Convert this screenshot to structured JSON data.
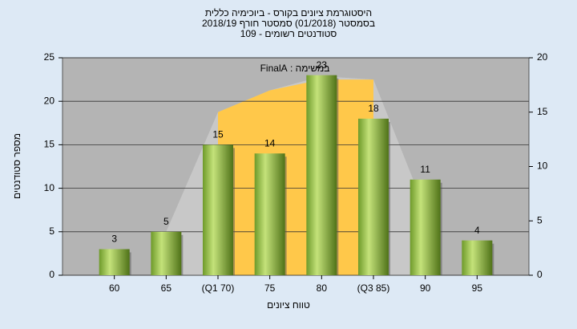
{
  "chart_data": {
    "type": "bar",
    "title": "היסטוגרמת ציונים בקורס - ביוכימיה כללית",
    "subtitle": "בסמסטר (01/2018) סמסטר חורף 2018/19",
    "subtitle2": "סטודנטים רשומים - 109",
    "annotation": "במשימה : FinalA",
    "x_label": "טווח ציונים",
    "y_label": "מספר סטודנטים",
    "categories": [
      "60",
      "65",
      "(Q1 70)",
      "75",
      "80",
      "(Q3 85)",
      "90",
      "95"
    ],
    "values": [
      3,
      5,
      15,
      14,
      23,
      18,
      11,
      4
    ],
    "color": "#8cbf3c",
    "curve": {
      "axis": "y2",
      "color": "#c8c8c8",
      "values": [
        null,
        4,
        15,
        17,
        18.3,
        18,
        6,
        null
      ]
    },
    "band": {
      "axis": "y2",
      "color": "#ffc84a",
      "values": [
        null,
        null,
        15,
        17,
        18,
        18,
        null,
        null
      ]
    },
    "ylim": [
      0,
      25
    ],
    "yticks": [
      0,
      5,
      10,
      15,
      20,
      25
    ],
    "y2lim": [
      0,
      20
    ],
    "y2ticks": [
      0,
      5,
      10,
      15,
      20
    ],
    "grid": true
  }
}
